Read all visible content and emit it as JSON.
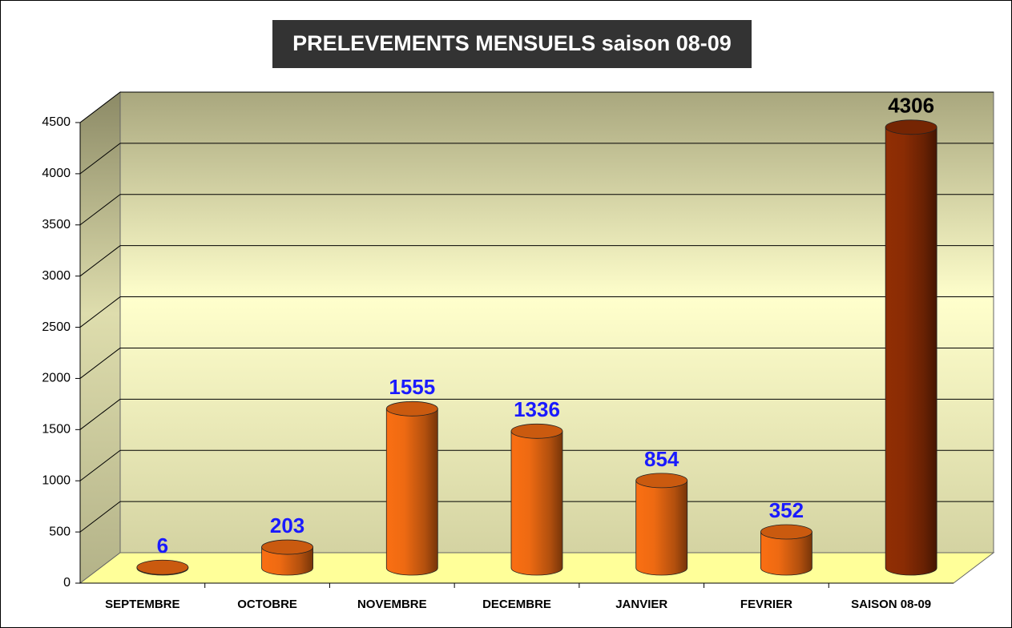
{
  "chart_data": {
    "type": "bar3d",
    "title": "PRELEVEMENTS MENSUELS saison 08-09",
    "categories": [
      "SEPTEMBRE",
      "OCTOBRE",
      "NOVEMBRE",
      "DECEMBRE",
      "JANVIER",
      "FEVRIER",
      "SAISON 08-09"
    ],
    "values": [
      6,
      203,
      1555,
      1336,
      854,
      352,
      4306
    ],
    "colors": [
      "#ee6a12",
      "#ee6a12",
      "#ee6a12",
      "#ee6a12",
      "#ee6a12",
      "#ee6a12",
      "#8a2c04"
    ],
    "label_colors": [
      "#1a1aff",
      "#1a1aff",
      "#1a1aff",
      "#1a1aff",
      "#1a1aff",
      "#1a1aff",
      "#000000"
    ],
    "ylim": [
      0,
      4500
    ],
    "yticks": [
      0,
      500,
      1000,
      1500,
      2000,
      2500,
      3000,
      3500,
      4000,
      4500
    ],
    "grid": true
  }
}
